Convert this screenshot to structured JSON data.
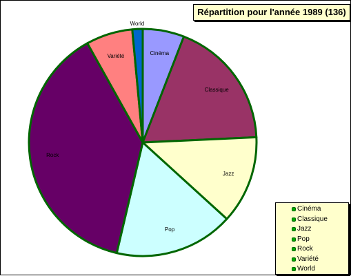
{
  "chart_data": {
    "type": "pie",
    "title": "Répartition pour l'année 1989 (136)",
    "slice_border_color": "#006600",
    "slices": [
      {
        "label": "Cinéma",
        "value": 8,
        "color": "#9999ff"
      },
      {
        "label": "Classique",
        "value": 25,
        "color": "#993366"
      },
      {
        "label": "Jazz",
        "value": 17,
        "color": "#ffffcc"
      },
      {
        "label": "Pop",
        "value": 23,
        "color": "#ccffff"
      },
      {
        "label": "Rock",
        "value": 52,
        "color": "#660066"
      },
      {
        "label": "Variété",
        "value": 9,
        "color": "#ff8080"
      },
      {
        "label": "World",
        "value": 2,
        "color": "#0066cc"
      }
    ],
    "legend": {
      "position": "bottom-right",
      "entries": [
        "Cinéma",
        "Classique",
        "Jazz",
        "Pop",
        "Rock",
        "Variété",
        "World"
      ]
    }
  }
}
